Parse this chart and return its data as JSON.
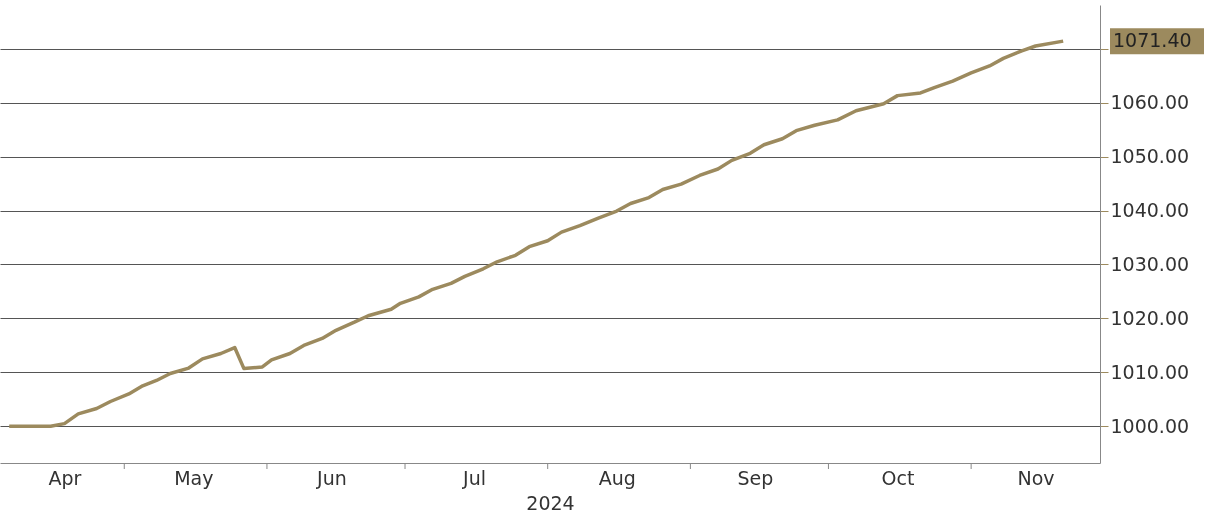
{
  "chart_data": {
    "type": "line",
    "xlabel": "2024",
    "x": [
      "2024-04-06",
      "2024-04-15",
      "2024-04-18",
      "2024-04-21",
      "2024-04-25",
      "2024-04-28",
      "2024-05-02",
      "2024-05-05",
      "2024-05-08",
      "2024-05-11",
      "2024-05-15",
      "2024-05-18",
      "2024-05-22",
      "2024-05-25",
      "2024-05-27",
      "2024-05-31",
      "2024-06-02",
      "2024-06-06",
      "2024-06-09",
      "2024-06-13",
      "2024-06-16",
      "2024-06-20",
      "2024-06-23",
      "2024-06-28",
      "2024-06-30",
      "2024-07-04",
      "2024-07-07",
      "2024-07-11",
      "2024-07-14",
      "2024-07-18",
      "2024-07-21",
      "2024-07-25",
      "2024-07-28",
      "2024-08-01",
      "2024-08-04",
      "2024-08-08",
      "2024-08-12",
      "2024-08-16",
      "2024-08-19",
      "2024-08-23",
      "2024-08-26",
      "2024-08-30",
      "2024-09-03",
      "2024-09-07",
      "2024-09-10",
      "2024-09-14",
      "2024-09-17",
      "2024-09-21",
      "2024-09-24",
      "2024-09-28",
      "2024-10-03",
      "2024-10-07",
      "2024-10-13",
      "2024-10-16",
      "2024-10-21",
      "2024-10-24",
      "2024-10-28",
      "2024-11-01",
      "2024-11-05",
      "2024-11-08",
      "2024-11-12",
      "2024-11-15",
      "2024-11-21"
    ],
    "series": [
      {
        "color": "#9c8a5e",
        "values": [
          1000,
          1000,
          1000.5,
          1002.3,
          1003.3,
          1004.6,
          1006,
          1007.5,
          1008.5,
          1009.8,
          1010.8,
          1012.5,
          1013.5,
          1014.6,
          1010.7,
          1011,
          1012.3,
          1013.5,
          1015,
          1016.3,
          1017.8,
          1019.3,
          1020.5,
          1021.7,
          1022.8,
          1024,
          1025.4,
          1026.5,
          1027.8,
          1029.2,
          1030.5,
          1031.7,
          1033.3,
          1034.4,
          1036,
          1037.2,
          1038.6,
          1039.9,
          1041.3,
          1042.4,
          1043.9,
          1044.9,
          1046.5,
          1047.7,
          1049.3,
          1050.6,
          1052.2,
          1053.3,
          1054.8,
          1055.8,
          1056.8,
          1058.5,
          1059.8,
          1061.3,
          1061.8,
          1062.8,
          1064,
          1065.5,
          1066.8,
          1068.2,
          1069.6,
          1070.5,
          1071.4
        ]
      }
    ],
    "xlim": [
      "2024-04-04",
      "2024-11-29"
    ],
    "xticks": [
      {
        "value": "2024-04-18",
        "label": "Apr"
      },
      {
        "value": "2024-05-01",
        "label": null
      },
      {
        "value": "2024-05-16",
        "label": "May"
      },
      {
        "value": "2024-06-01",
        "label": null
      },
      {
        "value": "2024-06-15",
        "label": "Jun"
      },
      {
        "value": "2024-07-01",
        "label": null
      },
      {
        "value": "2024-07-16",
        "label": "Jul"
      },
      {
        "value": "2024-08-01",
        "label": null
      },
      {
        "value": "2024-08-16",
        "label": "Aug"
      },
      {
        "value": "2024-09-01",
        "label": null
      },
      {
        "value": "2024-09-15",
        "label": "Sep"
      },
      {
        "value": "2024-10-01",
        "label": null
      },
      {
        "value": "2024-10-16",
        "label": "Oct"
      },
      {
        "value": "2024-11-01",
        "label": null
      },
      {
        "value": "2024-11-15",
        "label": "Nov"
      }
    ],
    "ylim": [
      993.2,
      1078.1
    ],
    "yticks": [
      {
        "value": 1000,
        "label": "1000.00"
      },
      {
        "value": 1010,
        "label": "1010.00"
      },
      {
        "value": 1020,
        "label": "1020.00"
      },
      {
        "value": 1030,
        "label": "1030.00"
      },
      {
        "value": 1040,
        "label": "1040.00"
      },
      {
        "value": 1050,
        "label": "1050.00"
      },
      {
        "value": 1060,
        "label": "1060.00"
      },
      {
        "value": 1070,
        "label": null
      }
    ],
    "annotations": [
      "1071.40"
    ],
    "grid": "y",
    "line_style": "solid",
    "marker": "none"
  }
}
